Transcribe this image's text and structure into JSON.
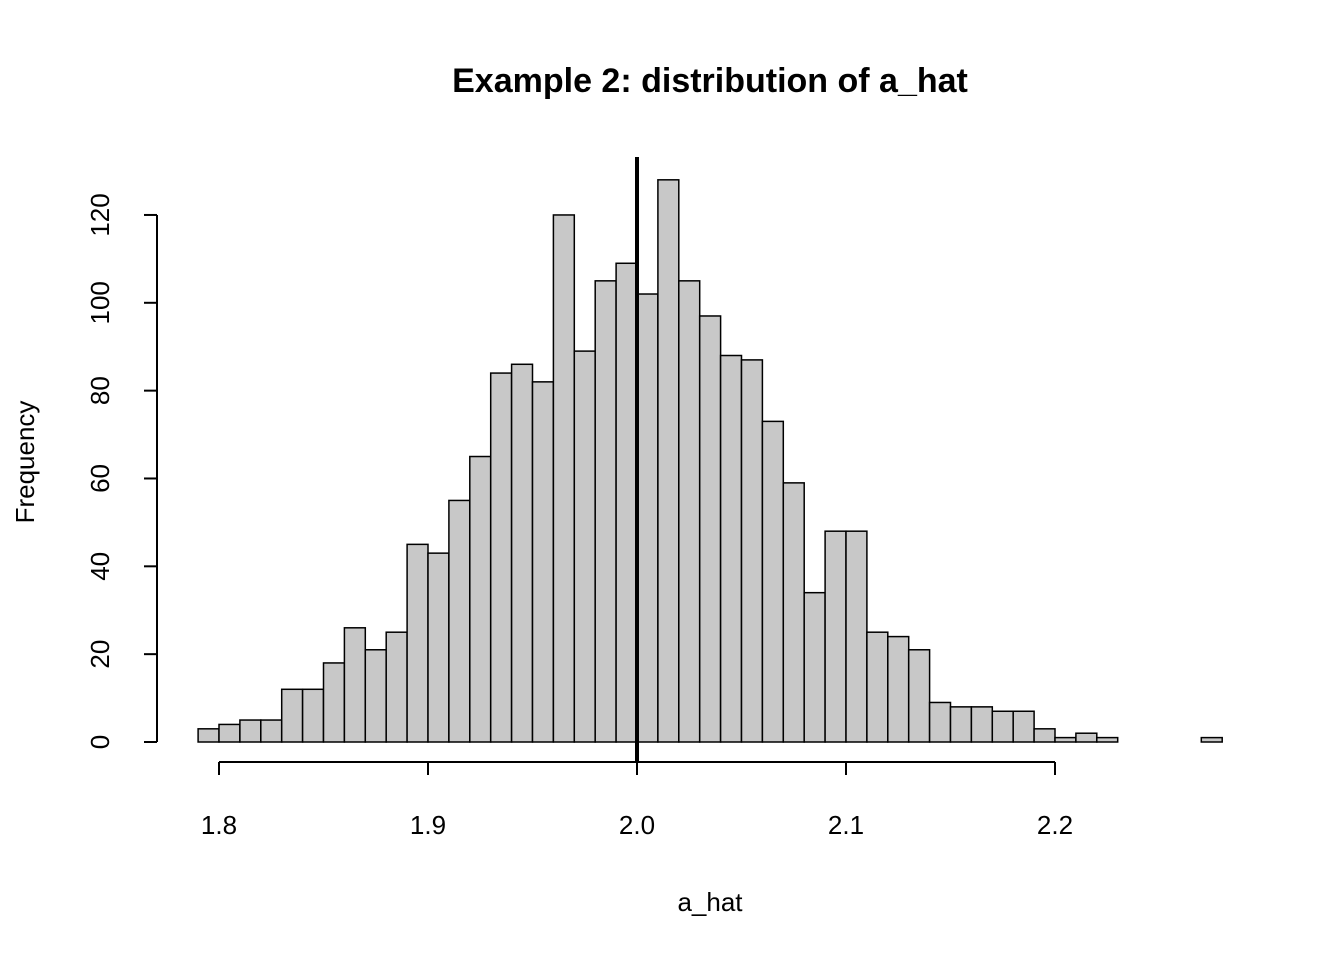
{
  "chart_data": {
    "type": "bar",
    "subtype": "histogram",
    "title": "Example 2: distribution of a_hat",
    "xlabel": "a_hat",
    "ylabel": "Frequency",
    "bin_start": 1.79,
    "bin_width": 0.01,
    "counts": [
      3,
      4,
      5,
      5,
      12,
      12,
      18,
      26,
      21,
      25,
      45,
      43,
      55,
      65,
      84,
      86,
      82,
      120,
      89,
      105,
      109,
      102,
      128,
      105,
      97,
      88,
      87,
      73,
      59,
      34,
      48,
      48,
      25,
      24,
      21,
      9,
      8,
      8,
      7,
      7,
      3,
      1,
      2,
      1,
      0,
      0,
      0,
      0,
      1
    ],
    "xlim": [
      1.79,
      2.28
    ],
    "ylim": [
      0,
      128
    ],
    "x_ticks": [
      1.8,
      1.9,
      2.0,
      2.1,
      2.2
    ],
    "x_tick_labels": [
      "1.8",
      "1.9",
      "2.0",
      "2.1",
      "2.2"
    ],
    "y_ticks": [
      0,
      20,
      40,
      60,
      80,
      100,
      120
    ],
    "y_tick_labels": [
      "0",
      "20",
      "40",
      "60",
      "80",
      "100",
      "120"
    ],
    "vline": 2.0,
    "grid": false,
    "bar_color": "#c8c8c8",
    "edge_color": "#000000",
    "vline_color": "#000000"
  }
}
